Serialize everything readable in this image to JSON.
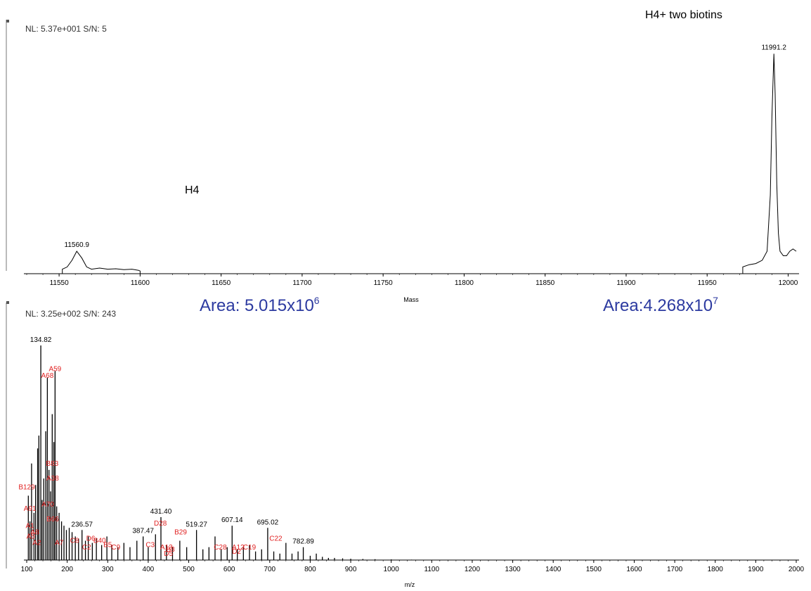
{
  "top_panel": {
    "header": "NL: 5.37e+001  S/N: 5",
    "label_h4": "H4",
    "label_h4_biotin": "H4+ two biotins",
    "area_left": {
      "text": "Area: 5.015x10",
      "exp": "6"
    },
    "area_right": {
      "text": "Area:4.268x10",
      "exp": "7"
    }
  },
  "bottom_panel": {
    "header": "NL: 3.25e+002  S/N: 243"
  },
  "chart_data": [
    {
      "type": "line",
      "title": "",
      "xlabel": "Mass",
      "ylabel": "",
      "xlim": [
        11530,
        12005
      ],
      "ylim": [
        0,
        100
      ],
      "xticks": [
        11550,
        11600,
        11650,
        11700,
        11750,
        11800,
        11850,
        11900,
        11950,
        12000
      ],
      "peak_labels": [
        {
          "x": 11560.9,
          "y": 10,
          "text": "11560.9"
        },
        {
          "x": 11991.2,
          "y": 98,
          "text": "11991.2"
        }
      ],
      "series": [
        {
          "segments": [
            [
              [
                11552,
                0
              ],
              [
                11552,
                2
              ],
              [
                11555,
                3
              ],
              [
                11558,
                6
              ],
              [
                11560.9,
                10
              ],
              [
                11564,
                7
              ],
              [
                11567,
                3
              ],
              [
                11570,
                2
              ],
              [
                11575,
                2.5
              ],
              [
                11580,
                2
              ],
              [
                11585,
                2.2
              ],
              [
                11590,
                1.8
              ],
              [
                11595,
                2
              ],
              [
                11599,
                1.5
              ],
              [
                11600,
                1.2
              ],
              [
                11600,
                0
              ]
            ],
            [
              [
                11972,
                0
              ],
              [
                11972,
                3
              ],
              [
                11976,
                4
              ],
              [
                11980,
                4.5
              ],
              [
                11984,
                6
              ],
              [
                11987,
                10
              ],
              [
                11989,
                35
              ],
              [
                11990,
                70
              ],
              [
                11991.2,
                98
              ],
              [
                11992,
                80
              ],
              [
                11993,
                40
              ],
              [
                11994,
                18
              ],
              [
                11995,
                10
              ],
              [
                11997,
                8
              ],
              [
                11999,
                8
              ],
              [
                12001,
                10
              ],
              [
                12003,
                11
              ],
              [
                12005,
                10
              ]
            ]
          ]
        }
      ]
    },
    {
      "type": "bar",
      "title": "",
      "xlabel": "m/z",
      "ylabel": "",
      "xlim": [
        100,
        2000
      ],
      "ylim": [
        0,
        100
      ],
      "xticks": [
        100,
        200,
        300,
        400,
        500,
        600,
        700,
        800,
        900,
        1000,
        1100,
        1200,
        1300,
        1400,
        1500,
        1600,
        1700,
        1800,
        1900,
        2000
      ],
      "peaks": [
        [
          104,
          30
        ],
        [
          108,
          18
        ],
        [
          112,
          45
        ],
        [
          118,
          22
        ],
        [
          122,
          35
        ],
        [
          127,
          52
        ],
        [
          130,
          58
        ],
        [
          134.82,
          100
        ],
        [
          138,
          28
        ],
        [
          142,
          38
        ],
        [
          147,
          60
        ],
        [
          151,
          85
        ],
        [
          155,
          42
        ],
        [
          159,
          32
        ],
        [
          163,
          68
        ],
        [
          167,
          55
        ],
        [
          170,
          88
        ],
        [
          174,
          25
        ],
        [
          180,
          22
        ],
        [
          186,
          18
        ],
        [
          192,
          16
        ],
        [
          198,
          14
        ],
        [
          205,
          15
        ],
        [
          212,
          13
        ],
        [
          220,
          11
        ],
        [
          228,
          10
        ],
        [
          236.57,
          14
        ],
        [
          245,
          9
        ],
        [
          252,
          11
        ],
        [
          262,
          8
        ],
        [
          272,
          10
        ],
        [
          285,
          7
        ],
        [
          298,
          11
        ],
        [
          310,
          7
        ],
        [
          325,
          6
        ],
        [
          340,
          8
        ],
        [
          355,
          6
        ],
        [
          372,
          9
        ],
        [
          387.47,
          11
        ],
        [
          400,
          6
        ],
        [
          418,
          12
        ],
        [
          431.4,
          20
        ],
        [
          445,
          7
        ],
        [
          460,
          6
        ],
        [
          478,
          9
        ],
        [
          495,
          6
        ],
        [
          519.27,
          14
        ],
        [
          535,
          5
        ],
        [
          550,
          6
        ],
        [
          565,
          11
        ],
        [
          580,
          5
        ],
        [
          595,
          6
        ],
        [
          607.14,
          16
        ],
        [
          620,
          5
        ],
        [
          635,
          6
        ],
        [
          650,
          7
        ],
        [
          665,
          4
        ],
        [
          680,
          5
        ],
        [
          695.02,
          15
        ],
        [
          710,
          4
        ],
        [
          725,
          3
        ],
        [
          740,
          8
        ],
        [
          755,
          3
        ],
        [
          770,
          4
        ],
        [
          782.89,
          6
        ],
        [
          800,
          2
        ],
        [
          815,
          3
        ],
        [
          830,
          1.5
        ],
        [
          845,
          1
        ],
        [
          860,
          1
        ],
        [
          880,
          0.8
        ],
        [
          900,
          0.6
        ],
        [
          930,
          0.5
        ],
        [
          960,
          0.4
        ],
        [
          1000,
          0.3
        ],
        [
          1050,
          0.2
        ]
      ],
      "peak_labels": [
        {
          "x": 134.82,
          "y": 100,
          "text": "134.82"
        },
        {
          "x": 236.57,
          "y": 14,
          "text": "236.57"
        },
        {
          "x": 387.47,
          "y": 11,
          "text": "387.47"
        },
        {
          "x": 431.4,
          "y": 20,
          "text": "431.40"
        },
        {
          "x": 519.27,
          "y": 14,
          "text": "519.27"
        },
        {
          "x": 607.14,
          "y": 16,
          "text": "607.14"
        },
        {
          "x": 695.02,
          "y": 15,
          "text": "695.02"
        },
        {
          "x": 782.89,
          "y": 6,
          "text": "782.89"
        }
      ],
      "fragment_labels": [
        {
          "x": 170,
          "y": 88,
          "text": "A59"
        },
        {
          "x": 151,
          "y": 85,
          "text": "A68"
        },
        {
          "x": 163,
          "y": 44,
          "text": "B83"
        },
        {
          "x": 164,
          "y": 37,
          "text": "A38"
        },
        {
          "x": 100,
          "y": 33,
          "text": "B129"
        },
        {
          "x": 152,
          "y": 25,
          "text": "A70"
        },
        {
          "x": 108,
          "y": 23,
          "text": "A91"
        },
        {
          "x": 164,
          "y": 18,
          "text": "B66"
        },
        {
          "x": 108,
          "y": 15,
          "text": "A1"
        },
        {
          "x": 120,
          "y": 12,
          "text": "A8"
        },
        {
          "x": 110,
          "y": 10,
          "text": "A5"
        },
        {
          "x": 125,
          "y": 7,
          "text": "A2"
        },
        {
          "x": 180,
          "y": 7,
          "text": "A7"
        },
        {
          "x": 218,
          "y": 8,
          "text": "C8"
        },
        {
          "x": 258,
          "y": 9,
          "text": "D6"
        },
        {
          "x": 280,
          "y": 8,
          "text": "B40"
        },
        {
          "x": 300,
          "y": 6,
          "text": "B5"
        },
        {
          "x": 248,
          "y": 5,
          "text": "C2"
        },
        {
          "x": 320,
          "y": 5,
          "text": "C9"
        },
        {
          "x": 405,
          "y": 6,
          "text": "C3"
        },
        {
          "x": 430,
          "y": 16,
          "text": "D28"
        },
        {
          "x": 480,
          "y": 12,
          "text": "B29"
        },
        {
          "x": 445,
          "y": 5,
          "text": "A13"
        },
        {
          "x": 455,
          "y": 4,
          "text": "B3"
        },
        {
          "x": 450,
          "y": 2,
          "text": "D5"
        },
        {
          "x": 578,
          "y": 5,
          "text": "C28"
        },
        {
          "x": 622,
          "y": 5,
          "text": "A12"
        },
        {
          "x": 618,
          "y": 3,
          "text": "D2"
        },
        {
          "x": 650,
          "y": 5,
          "text": "C19"
        },
        {
          "x": 715,
          "y": 9,
          "text": "C22"
        }
      ]
    }
  ]
}
